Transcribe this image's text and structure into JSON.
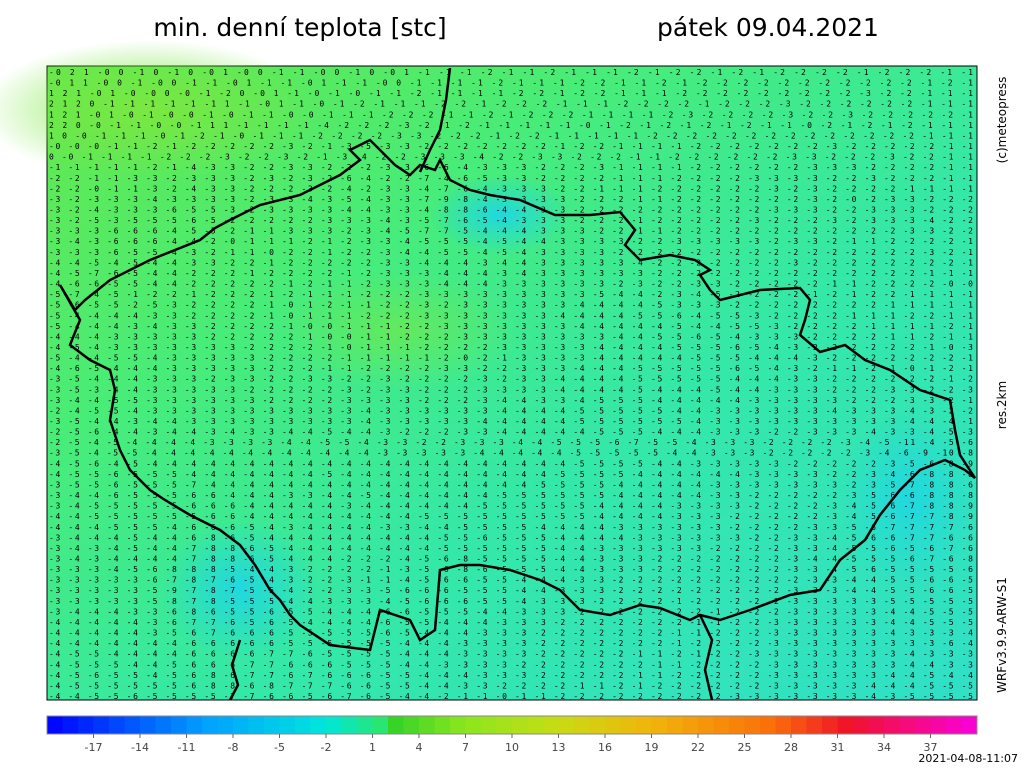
{
  "header": {
    "title": "min. denní teplota [stc]",
    "date": "pátek 09.04.2021"
  },
  "side_labels": {
    "copyright": "(c)meteopress",
    "resolution": "res.2km",
    "model": "WRFv3.9.9-ARW-S1"
  },
  "timestamp": "2021-04-08-11:07",
  "map": {
    "grid_rows": [
      "-0 2 1 -0 0 -1 0 -1 0 -0 1 -0 0 -1 -1 -0 0 -1 0 -0 1 -1 -1 -1 -2 -1 -1 -2 -1 -1 -1 -2 -1 -2 -2 -1 -2 -1 -2 -2 -2 -2 -1 -2 -2 -2 -1 -1",
      "-0 1 1 -0 0 -1 -0 0 -1 -1 -0 1 -1 -1 -0 1 -1 -1 -0 0 -1 -1 -1 -1 -2 -1 -1 -1 -2 -2 -1 -1 -2 -1 -2 -2 -2 -2 -2 -2 -2 -2 -2 -2 -2 -1 -2 -1",
      "1 2 1 -0 1 -0 -0 0 -0 -1 -2 0 -0 1 -1 -0 -1 -0 -1 -1 -2 -1 -1 -1 -1 -2 -2 -1 -2 -2 -1 -1 -1 -2 -2 -2 -2 -2 -2 -2 -2 -2 -3 -2 -2 -1 -1 -1",
      "2 1 2 0 -1 -1 -1 -1 -1 -1 1 -1 -0 1 -1 -0 -1 -2 -1 -1 -1 -2 -2 -1 -2 -2 -2 -1 -1 -1 -2 -2 -2 -2 -1 -2 -2 -2 -3 -2 -2 -2 -2 -2 -2 -1 -1 -1",
      "1 2 1 -0 1 -0 -1 -0 -0 -1 -0 -1 -1 -0 -0 -1 -1 -1 -2 -2 -2 -1 -1 -2 -1 -2 -2 -2 -1 -1 -1 -1 -2 -3 -2 -2 -2 -2 -3 -2 -2 -3 -2 -2 -2 -2 -2 -1",
      "2 2 0 -0 -1 -1 -0 -0 -1 1 1 -1 -1 -1 -1 -4 -2 -2 -2 -3 -2 -1 -2 -1 -1 -1 -1 -1 -0 -1 -2 -1 -2 -1 -2 -1 -2 -1 -1 -0 -2 -1 -2 -1 -2 -1 -1 -1",
      "1 0 -0 -1 -1 -1 -0 -1 -2 -1 -0 -1 -1 -1 -2 -2 -2 -2 -3 -3 -2 -2 -2 -1 -2 -2 -1 -1 -1 -1 -1 -2 -2 -2 -2 -2 -2 -2 -2 -2 -2 -2 -2 -2 -2 -1 -1 -1",
      "-0 -0 -0 -1 -1 -2 -1 -2 -2 -2 -2 -2 -3 -2 -1 -3 -5 -3 -3 -2 -2 -2 -2 -2 -2 -2 -1 -2 -2 -1 -1 -1 -1 -2 -2 -2 -2 -2 -2 -2 -3 -2 -2 -2 -2 -2 -1 -1",
      "0 -0 -1 -1 -1 -1 -2 -2 -2 -3 -2 -2 -3 -2 -1 -3 -4 -2 -2 -3 -3 -3 -4 -2 -2 -3 -3 -2 -2 -2 -1 -1 -2 -2 -2 -2 -2 -2 -3 -3 -2 -2 -2 -3 -2 -2 -1 -1",
      "-1 -1 -1 -1 -1 -2 -1 -4 -3 -3 -2 -2 -3 -3 -2 -2 -2 -3 -3 -6 -6 -4 -3 -3 -3 -2 -2 -2 -3 -1 -1 -1 -1 -2 -2 -2 -2 -2 -2 -3 -3 -3 -2 -2 -2 -2 -1 -1",
      "-2 -2 -1 -1 -3 -3 -2 -3 -3 -3 -2 -3 -2 -3 -2 -6 -4 -2 -2 -7 -4 -6 -5 -3 -3 -2 -2 -2 -2 -1 -1 -1 -2 -2 -2 -2 -3 -3 -3 -3 -2 -2 -3 -2 -2 -2 -1 -1",
      "-2 -2 -0 -1 -1 -3 -2 -4 -3 -3 -2 -2 -2 -3 -2 -4 -2 -3 -3 -4 -7 -6 -4 -3 -3 -3 -2 -2 -1 -1 -1 -2 -2 -2 -2 -2 -2 -3 -2 -3 -2 -2 -2 -2 -1 -1 -1 -1",
      "-3 -2 -3 -3 -3 -4 -3 -3 -3 -3 -2 -3 -3 -4 -3 -5 -4 -3 -3 -7 -9 -8 -4 -3 -3 -3 -3 -2 -2 -2 -1 -1 -2 -2 -2 -2 -2 -2 -2 -3 -2 -0 -2 -3 -3 -2 -2 -2",
      "-3 -2 -4 -3 -3 -3 -6 -5 -5 -3 -2 -3 -3 -3 -3 -4 -4 -3 -3 -4 -8 -8 -6 -4 -4 -3 -3 -2 -2 -2 -2 -2 -2 -2 -2 -2 -2 -3 -3 -3 -2 -2 -3 -3 -3 -2 -2 -2",
      "-3 -2 -5 -3 -5 -5 -5 -6 -5 -2 -2 -2 -2 -2 -3 -3 -3 -4 -3 -5 -7 -6 -5 -4 -3 -3 -3 -2 -2 -2 -1 -2 -2 -2 -2 -2 -3 -2 -2 -2 -3 -2 -3 -3 -3 -4 -2 -2",
      "-3 -3 -3 -6 -6 -6 -4 -5 -5 -2 -1 -1 -3 -3 -3 -2 -3 -4 -5 -7 -7 -5 -4 -4 -4 -3 -3 -3 -2 -2 -1 -1 -2 -2 -2 -2 -2 -2 -2 -2 -2 -2 -2 -2 -3 -3 -2 -2",
      "-3 -4 -3 -6 -6 -6 -4 -4 -2 -0 -1 -1 -1 -2 -1 -2 -3 -3 -4 -5 -5 -5 -4 -5 -4 -4 -3 -3 -3 -3 -2 -2 -3 -3 -3 -3 -3 -2 -3 -3 -2 -1 -1 -2 -2 -2 -2 -1",
      "-3 -3 -3 -6 -5 -5 -4 -3 -2 -1 -1 -0 -2 -2 -1 -2 -2 -3 -4 -4 -5 -5 -4 -5 -4 -3 -3 -3 -3 -2 -2 -2 -2 -2 -2 -2 -2 -2 -2 -2 -2 -2 -2 -2 -2 -3 -2 -1",
      "-4 -4 -5 -4 -5 -4 -4 -3 -3 -2 -2 -1 -2 -2 -2 -2 -2 -3 -3 -4 -4 -4 -3 -4 -4 -3 -3 -3 -3 -3 -4 -2 -2 -2 -2 -2 -2 -2 -3 -2 -2 -2 -2 -2 -2 -2 -2 -1",
      "-4 -5 -7 -6 -5 -4 -4 -2 -2 -2 -1 -2 -2 -2 -2 -1 -2 -3 -3 -3 -4 -4 -4 -3 -4 -3 -3 -3 -3 -3 -3 -2 -2 -2 -2 -2 -2 -2 -2 -2 -2 -2 -2 -2 -2 -1 -1 -1",
      "-4 -6 -6 -5 -5 -4 -4 -2 -2 -2 -2 -2 -1 -2 -1 -1 -2 -3 -3 -3 -4 -4 -4 -3 -3 -3 -3 -3 -3 -2 -3 -2 -2 -3 -3 -2 -2 -2 -2 -2 -1 -1 -2 -2 -2 -2 -0 -0",
      "-5 -7 -4 -5 -1 -2 -2 -1 -2 -2 -2 -1 -2 -1 -1 -1 -2 -2 -2 -3 -3 -3 -3 -3 -3 -3 -3 -3 -5 -4 -4 -2 -3 -4 -5 -2 -2 -2 -2 -1 -2 -1 -2 -2 -1 -1 -1 -1",
      "-5 -6 -5 -5 -2 -5 -3 -2 -2 -2 -2 -1 -0 -1 -2 -1 -1 -2 -2 -3 -2 -3 -3 -3 -3 -3 -3 -4 -4 -4 -4 -5 -3 -3 -3 -2 -2 -2 -2 -2 -2 -2 -2 -1 -1 -1 -1 -1",
      "-5 -4 -4 -4 -4 -3 -3 -2 -2 -2 -2 -1 -0 -1 -1 -1 -2 -2 -2 -3 -3 -3 -3 -3 -3 -3 -4 -4 -4 -4 -5 -5 -6 -4 -5 -5 -3 -2 -2 -2 -2 -1 -1 -1 -2 -2 -1 -1",
      "-5 -4 -4 -4 -3 -4 -3 -3 -2 -2 -2 -2 -1 -0 -0 -1 -1 -1 -2 -2 -3 -3 -3 -3 -3 -3 -3 -4 -4 -4 -4 -4 -5 -4 -4 -5 -5 -3 -2 -2 -2 -2 -1 -1 -1 -1 -2 -1",
      "-4 -4 -4 -3 -3 -3 -3 -3 -2 -2 -2 -2 -2 -1 -0 -0 -1 -1 -2 -2 -2 -3 -3 -3 -3 -3 -3 -3 -3 -4 -4 -5 -5 -6 -5 -4 -3 -3 -3 -2 -2 -2 -2 -1 -1 -2 -1 -1",
      "-4 -5 -4 -3 -3 -3 -3 -3 -3 -3 -2 -2 -2 -2 -1 -0 -1 -1 -1 -2 -2 -2 -2 -3 -3 -3 -3 -3 -4 -4 -4 -4 -5 -5 -5 -6 -5 -4 -3 -2 -2 -2 -2 -2 -2 -1 -0 -3",
      "-5 -4 -4 -5 -5 -4 -3 -3 -3 -3 -3 -2 -2 -2 -2 -1 -1 -1 -1 -1 -2 -0 -2 -1 -3 -3 -3 -3 -4 -4 -4 -4 -4 -5 -5 -5 -4 -4 -4 -3 -2 -2 -2 -2 -2 -2 -2 -1",
      "-4 -6 -5 -4 -4 -4 -3 -3 -3 -3 -3 -2 -2 -2 -1 -1 -2 -2 -2 -2 -3 -3 -2 -2 -3 -3 -3 -4 -4 -4 -5 -5 -5 -5 -5 -6 -5 -4 -3 -2 -1 -1 -2 -1 -0 -1 -2 -1",
      "-3 -5 -4 -4 -4 -3 -3 -3 -2 -3 -3 -2 -2 -3 -3 -2 -2 -3 -2 -2 -2 -2 -3 -2 -3 -3 -4 -4 -4 -4 -5 -5 -5 -5 -5 -4 -4 -4 -3 -3 -2 -2 -2 -2 -2 -2 -1 -2",
      "-3 -5 -3 -4 -4 -3 -3 -3 -3 -3 -2 -2 -2 -2 -2 -3 -2 -3 -3 -2 -2 -2 -3 -3 -3 -3 -4 -4 -4 -4 -5 -4 -4 -4 -5 -4 -4 -3 -3 -3 -2 -2 -2 -3 -3 -2 -2 -3",
      "-3 -4 -4 -5 -5 -3 -3 -3 -3 -3 -3 -2 -2 -2 -2 -3 -3 -3 -3 -2 -2 -2 -3 -4 -4 -3 -3 -4 -5 -5 -5 -4 -4 -4 -4 -4 -3 -3 -3 -3 -3 -2 -2 -2 -3 -3 -2 -1",
      "-2 -4 -5 -5 -4 -3 -3 -3 -3 -3 -3 -3 -3 -3 -3 -3 -4 -3 -3 -3 -3 -3 -3 -4 -4 -4 -4 -5 -5 -5 -5 -5 -4 -4 -3 -3 -3 -3 -3 -3 -4 -3 -3 -3 -4 -3 -2 -2",
      "-3 -5 -4 -4 -3 -4 -4 -3 -3 -3 -3 -3 -3 -3 -3 -3 -4 -3 -3 -3 -3 -3 -4 -4 -4 -4 -4 -5 -5 -5 -5 -5 -5 -4 -3 -3 -3 -3 -3 -3 -3 -3 -3 -3 -4 -4 -4 -1",
      "-2 -5 -6 -4 -4 -3 -4 -4 -3 -4 -3 -3 -4 -4 -5 -4 -4 -3 -2 -2 -2 -3 -3 -4 -4 -4 -4 -4 -5 -5 -5 -4 -4 -4 -3 -3 -3 -2 -2 -3 -3 -3 -4 -3 -3 -4 -5 -3",
      "-2 -5 -4 -5 -4 -4 -4 -4 -3 -3 -3 -3 -4 -4 -5 -5 -4 -3 -3 -2 -2 -3 -3 -3 -4 -4 -5 -5 -5 -6 -7 -5 -5 -4 -3 -3 -3 -2 -2 -2 -2 -3 -4 -5 -11 -4 -5 -6",
      "-3 -5 -4 -5 -5 -4 -4 -4 -4 -4 -4 -4 -4 -4 -4 -4 -4 -3 -3 -3 -3 -3 -4 -4 -4 -4 -4 -5 -5 -5 -5 -5 -4 -4 -3 -3 -3 -2 -2 -2 -2 -2 -3 -4 -6 -9 -10 -8",
      "-4 -5 -6 -4 -5 -4 -4 -4 -4 -4 -4 -4 -4 -4 -4 -4 -4 -4 -4 -4 -4 -4 -4 -4 -4 -4 -4 -5 -5 -5 -5 -4 -4 -3 -3 -3 -3 -3 -2 -2 -2 -2 -2 -3 -5 -6 -8 -9",
      "-4 -5 -5 -6 -5 -5 -5 -4 -4 -4 -4 -4 -4 -4 -5 -4 -4 -4 -4 -4 -4 -4 -4 -4 -4 -4 -5 -5 -5 -5 -4 -4 -4 -4 -4 -4 -3 -3 -3 -3 -2 -2 -3 -4 -6 -8 -8 -8",
      "-3 -5 -5 -6 -5 -5 -5 -7 -4 -4 -4 -4 -4 -4 -4 -4 -4 -4 -4 -4 -4 -4 -4 -4 -4 -5 -5 -5 -5 -4 -4 -4 -4 -4 -3 -3 -3 -3 -3 -3 -3 -2 -3 -5 -7 -8 -8 -6",
      "-3 -4 -4 -6 -5 -5 -5 -6 -6 -4 -4 -4 -3 -3 -4 -4 -5 -4 -4 -4 -4 -4 -4 -5 -5 -5 -5 -5 -5 -4 -4 -4 -4 -4 -3 -3 -2 -2 -2 -2 -2 -3 -5 -6 -6 -8 -8 -8",
      "-3 -4 -5 -5 -5 -5 -5 -6 -6 -6 -4 -4 -4 -4 -4 -3 -4 -4 -4 -4 -4 -4 -5 -5 -5 -5 -5 -5 -4 -4 -4 -4 -3 -3 -3 -3 -2 -2 -2 -2 -3 -4 -5 -6 -7 -8 -8 -9",
      "-4 -4 -5 -5 -5 -5 -5 -5 -6 -6 -4 -4 -4 -4 -4 -4 -4 -4 -4 -5 -5 -5 -5 -5 -5 -5 -5 -5 -4 -4 -4 -4 -3 -3 -3 -2 -2 -2 -2 -2 -3 -4 -5 -6 -7 -7 -8 -9",
      "-4 -4 -4 -5 -5 -5 -4 -6 -6 -6 -5 -4 -3 -4 -4 -4 -4 -3 -3 -4 -4 -5 -5 -5 -5 -4 -4 -4 -4 -3 -3 -3 -3 -3 -3 -2 -2 -2 -2 -3 -3 -5 -6 -7 -7 -7 -7 -6",
      "-3 -4 -4 -4 -5 -4 -4 -6 -8 -6 -5 -4 -4 -4 -4 -4 -4 -4 -4 -4 -5 -5 -6 -5 -5 -5 -4 -4 -4 -4 -3 -3 -3 -3 -3 -3 -2 -2 -3 -3 -4 -5 -6 -6 -7 -7 -6 -6",
      "-3 -4 -3 -4 -5 -4 -4 -7 -8 -8 -6 -5 -4 -4 -4 -4 -4 -4 -4 -4 -5 -5 -5 -5 -5 -5 -4 -4 -3 -3 -3 -3 -3 -3 -2 -2 -2 -2 -3 -3 -4 -5 -5 -6 -5 -6 -7 -6",
      "-3 -4 -3 -4 -4 -4 -4 -7 -8 -8 -6 -5 -4 -4 -4 -2 -2 -2 -4 -5 -6 -8 -5 -5 -5 -5 -4 -4 -3 -3 -3 -2 -2 -2 -2 -2 -2 -2 -3 -4 -4 -5 -5 -5 -6 -7 -6 -8",
      "-3 -3 -3 -4 -5 -6 -8 -8 -8 -5 -4 -4 -3 -2 -2 -2 -2 -1 -3 -5 -6 -8 -6 -5 -5 -5 -4 -4 -3 -3 -3 -2 -2 -2 -2 -2 -2 -2 -3 -3 -4 -5 -6 -5 -5 -5 -5 -6",
      "-3 -3 -3 -3 -3 -6 -7 -8 -7 -6 -5 -4 -3 -2 -2 -3 -1 -1 -4 -5 -6 -6 -5 -5 -4 -4 -4 -3 -3 -2 -2 -2 -2 -2 -2 -2 -2 -2 -2 -3 -3 -4 -4 -5 -5 -6 -6 -5",
      "-3 -3 -3 -3 -3 -5 -9 -7 -8 -7 -5 -5 -4 -2 -2 -3 -3 -5 -6 -6 -6 -5 -5 -5 -4 -4 -3 -3 -3 -2 -2 -2 -2 -2 -2 -2 -2 -2 -3 -3 -3 -4 -4 -5 -5 -6 -6 -5",
      "-3 -3 -3 -3 -3 -5 -8 -7 -8 -5 -5 -5 -4 -4 -3 -3 -3 -4 -5 -6 -6 -6 -5 -5 -4 -3 -3 -3 -2 -2 -2 -2 -1 -2 -2 -2 -2 -2 -3 -3 -3 -3 -3 -5 -5 -5 -5 -5",
      "-3 -4 -4 -4 -3 -3 -6 -8 -6 -5 -5 -6 -5 -5 -4 -4 -4 -6 -6 -5 -5 -5 -4 -4 -3 -3 -3 -2 -2 -2 -2 -2 -2 -2 -1 -2 -2 -2 -3 -3 -3 -3 -3 -4 -4 -5 -5 -5",
      "-4 -4 -4 -4 -4 -3 -6 -7 -7 -6 -5 -6 -5 -4 -4 -4 -4 -6 -5 -5 -4 -4 -4 -3 -3 -3 -2 -2 -2 -2 -2 -2 -2 -1 -1 -2 -2 -3 -3 -3 -3 -3 -3 -4 -4 -5 -5 -5",
      "-4 -4 -4 -4 -4 -3 -5 -6 -7 -6 -6 -6 -5 -5 -5 -5 -5 -6 -5 -4 -4 -4 -3 -3 -3 -2 -2 -2 -2 -2 -2 -2 -1 -1 -2 -2 -2 -3 -3 -3 -3 -3 -3 -4 -3 -3 -3 -4",
      "-4 -4 -4 -4 -4 -4 -4 -6 -6 -6 -6 -6 -5 -5 -5 -5 -5 -5 -4 -4 -4 -3 -3 -3 -3 -2 -2 -2 -2 -2 -2 -2 -1 -2 -2 -2 -2 -3 -3 -3 -3 -3 -3 -3 -3 -3 -6 -4",
      "-4 -5 -5 -4 -4 -4 -4 -6 -6 -6 -6 -7 -7 -6 -5 -5 -5 -5 -4 -4 -4 -3 -3 -3 -3 -2 -2 -2 -2 -2 -1 -1 -2 -1 -2 -2 -3 -3 -3 -3 -3 -3 -3 -3 -4 -3 -3 -3",
      "-4 -5 -5 -5 -4 -4 -5 -6 -6 -6 -7 -7 -6 -6 -6 -5 -5 -5 -4 -4 -3 -3 -3 -3 -2 -2 -2 -2 -2 -2 -2 -1 -1 -2 -2 -2 -2 -3 -3 -3 -3 -3 -3 -3 -4 -4 -3 -3",
      "-4 -5 -6 -5 -5 -4 -5 -6 -8 -6 -7 -7 -6 -7 -6 -6 -6 -5 -5 -4 -4 -4 -3 -3 -3 -2 -2 -2 -2 -2 -1 -1 -2 -2 -2 -2 -2 -3 -3 -3 -3 -3 -3 -4 -4 -5 -4 -4",
      "-4 -5 -5 -5 -5 -5 -5 -6 -8 -8 -6 -8 -7 -7 -7 -6 -6 -5 -5 -4 -4 -3 -3 -2 -2 -2 -2 -1 -1 -2 -1 -2 -2 -2 -2 -2 -2 -3 -3 -3 -3 -3 -4 -4 -4 -5 -5 -5",
      "-4 -4 -5 -5 -6 -5 -5 -5 -5 -7 -7 -6 -6 -5 -6 -7 -6 -5 -4 -4 -2 -1 -1 -0 -1 -1 -2 -2 -2 -2 -2 -2 -2 -2 -2 -3 -3 -3 -3 -3 -3 -3 -4 -3 -5 -5 -5 -5"
    ]
  },
  "colorbar": {
    "range": [
      -20,
      40
    ],
    "ticks": [
      -17,
      -14,
      -11,
      -8,
      -5,
      -2,
      1,
      4,
      7,
      10,
      13,
      16,
      19,
      22,
      25,
      28,
      31,
      34,
      37
    ]
  }
}
